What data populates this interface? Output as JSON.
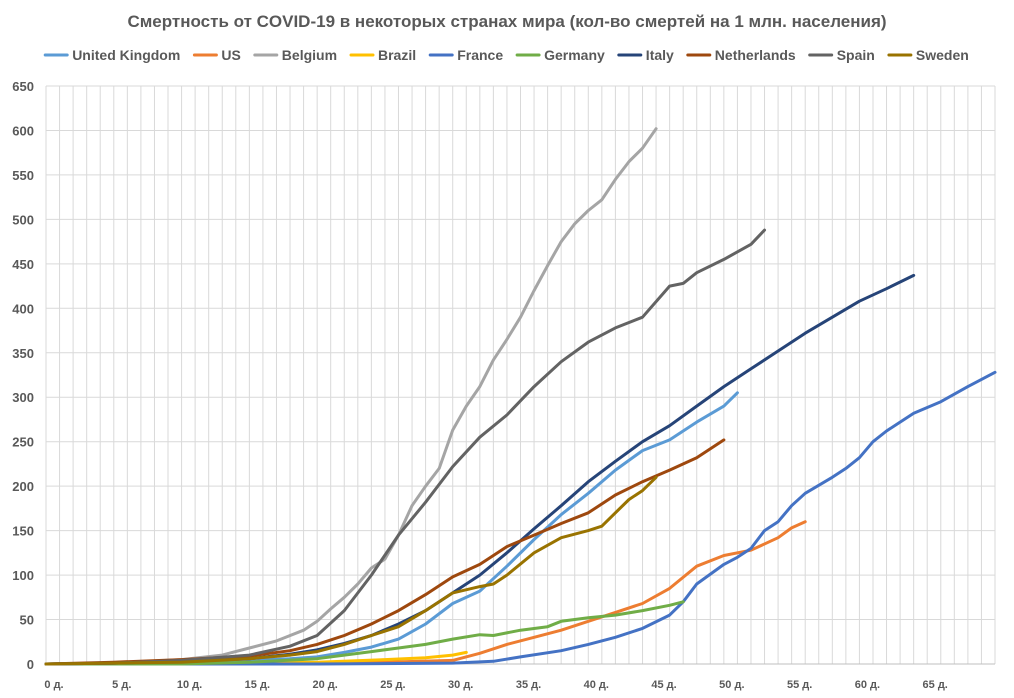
{
  "chart_data": {
    "type": "line",
    "title": "Смертность от COVID-19 в некоторых странах мира (кол-во смертей на 1 млн. населения)",
    "xlabel": "",
    "ylabel": "",
    "xlim": [
      0,
      70
    ],
    "ylim": [
      0,
      650
    ],
    "y_ticks": [
      0,
      50,
      100,
      150,
      200,
      250,
      300,
      350,
      400,
      450,
      500,
      550,
      600,
      650
    ],
    "x_ticks": [
      {
        "value": 0,
        "label": "0 д."
      },
      {
        "value": 5,
        "label": "5 д."
      },
      {
        "value": 10,
        "label": "10 д."
      },
      {
        "value": 15,
        "label": "15 д."
      },
      {
        "value": 20,
        "label": "20 д."
      },
      {
        "value": 25,
        "label": "25 д."
      },
      {
        "value": 30,
        "label": "30 д."
      },
      {
        "value": 35,
        "label": "35 д."
      },
      {
        "value": 40,
        "label": "40 д."
      },
      {
        "value": 45,
        "label": "45 д."
      },
      {
        "value": 50,
        "label": "50 д."
      },
      {
        "value": 55,
        "label": "55 д."
      },
      {
        "value": 60,
        "label": "60 д."
      },
      {
        "value": 65,
        "label": "65 д."
      }
    ],
    "grid": true,
    "legend": "top",
    "series": [
      {
        "name": "United Kingdom",
        "color": "#5b9bd5",
        "points": [
          [
            0,
            0
          ],
          [
            5,
            1
          ],
          [
            10,
            2
          ],
          [
            15,
            4
          ],
          [
            18,
            6
          ],
          [
            20,
            8
          ],
          [
            22,
            13
          ],
          [
            24,
            19
          ],
          [
            26,
            28
          ],
          [
            28,
            45
          ],
          [
            30,
            68
          ],
          [
            32,
            82
          ],
          [
            34,
            110
          ],
          [
            36,
            140
          ],
          [
            38,
            168
          ],
          [
            40,
            192
          ],
          [
            42,
            218
          ],
          [
            44,
            240
          ],
          [
            46,
            252
          ],
          [
            48,
            272
          ],
          [
            50,
            290
          ],
          [
            51,
            305
          ]
        ]
      },
      {
        "name": "US",
        "color": "#ed7d31",
        "points": [
          [
            0,
            0
          ],
          [
            10,
            0
          ],
          [
            20,
            1
          ],
          [
            25,
            2
          ],
          [
            30,
            4
          ],
          [
            32,
            12
          ],
          [
            34,
            22
          ],
          [
            36,
            30
          ],
          [
            38,
            38
          ],
          [
            40,
            48
          ],
          [
            42,
            58
          ],
          [
            44,
            68
          ],
          [
            46,
            85
          ],
          [
            48,
            110
          ],
          [
            50,
            122
          ],
          [
            52,
            128
          ],
          [
            54,
            142
          ],
          [
            55,
            153
          ],
          [
            56,
            160
          ]
        ]
      },
      {
        "name": "Belgium",
        "color": "#a5a5a5",
        "points": [
          [
            0,
            0
          ],
          [
            5,
            1
          ],
          [
            10,
            5
          ],
          [
            13,
            10
          ],
          [
            15,
            18
          ],
          [
            17,
            26
          ],
          [
            19,
            38
          ],
          [
            20,
            48
          ],
          [
            21,
            62
          ],
          [
            22,
            75
          ],
          [
            23,
            90
          ],
          [
            24,
            108
          ],
          [
            25,
            118
          ],
          [
            26,
            145
          ],
          [
            27,
            178
          ],
          [
            28,
            200
          ],
          [
            29,
            220
          ],
          [
            30,
            263
          ],
          [
            31,
            290
          ],
          [
            32,
            312
          ],
          [
            33,
            342
          ],
          [
            34,
            365
          ],
          [
            35,
            390
          ],
          [
            36,
            420
          ],
          [
            37,
            448
          ],
          [
            38,
            475
          ],
          [
            39,
            495
          ],
          [
            40,
            510
          ],
          [
            41,
            522
          ],
          [
            42,
            545
          ],
          [
            43,
            565
          ],
          [
            44,
            580
          ],
          [
            45,
            602
          ]
        ]
      },
      {
        "name": "Brazil",
        "color": "#ffc000",
        "points": [
          [
            0,
            0
          ],
          [
            10,
            0
          ],
          [
            15,
            1
          ],
          [
            20,
            2
          ],
          [
            25,
            5
          ],
          [
            28,
            7
          ],
          [
            30,
            10
          ],
          [
            31,
            13
          ]
        ]
      },
      {
        "name": "France",
        "color": "#4472c4",
        "points": [
          [
            0,
            0
          ],
          [
            10,
            0
          ],
          [
            20,
            0
          ],
          [
            30,
            1
          ],
          [
            33,
            3
          ],
          [
            35,
            8
          ],
          [
            38,
            15
          ],
          [
            40,
            22
          ],
          [
            42,
            30
          ],
          [
            44,
            40
          ],
          [
            46,
            55
          ],
          [
            47,
            70
          ],
          [
            48,
            90
          ],
          [
            50,
            112
          ],
          [
            51,
            120
          ],
          [
            52,
            130
          ],
          [
            53,
            150
          ],
          [
            54,
            160
          ],
          [
            55,
            178
          ],
          [
            56,
            192
          ],
          [
            58,
            210
          ],
          [
            59,
            220
          ],
          [
            60,
            232
          ],
          [
            61,
            250
          ],
          [
            62,
            262
          ],
          [
            63,
            272
          ],
          [
            64,
            282
          ],
          [
            66,
            295
          ],
          [
            68,
            312
          ],
          [
            70,
            328
          ]
        ]
      },
      {
        "name": "Germany",
        "color": "#70ad47",
        "points": [
          [
            0,
            0
          ],
          [
            10,
            0
          ],
          [
            15,
            2
          ],
          [
            20,
            6
          ],
          [
            22,
            10
          ],
          [
            24,
            14
          ],
          [
            26,
            18
          ],
          [
            28,
            22
          ],
          [
            30,
            28
          ],
          [
            32,
            33
          ],
          [
            33,
            32
          ],
          [
            35,
            38
          ],
          [
            37,
            42
          ],
          [
            38,
            48
          ],
          [
            40,
            52
          ],
          [
            42,
            55
          ],
          [
            44,
            60
          ],
          [
            46,
            66
          ],
          [
            47,
            70
          ]
        ]
      },
      {
        "name": "Italy",
        "color": "#264478",
        "points": [
          [
            0,
            0
          ],
          [
            5,
            1
          ],
          [
            10,
            3
          ],
          [
            15,
            6
          ],
          [
            18,
            11
          ],
          [
            20,
            16
          ],
          [
            22,
            23
          ],
          [
            24,
            32
          ],
          [
            26,
            45
          ],
          [
            28,
            60
          ],
          [
            30,
            80
          ],
          [
            32,
            100
          ],
          [
            34,
            125
          ],
          [
            36,
            152
          ],
          [
            38,
            178
          ],
          [
            40,
            205
          ],
          [
            42,
            228
          ],
          [
            44,
            250
          ],
          [
            46,
            268
          ],
          [
            48,
            290
          ],
          [
            50,
            312
          ],
          [
            52,
            332
          ],
          [
            54,
            352
          ],
          [
            56,
            372
          ],
          [
            58,
            390
          ],
          [
            60,
            408
          ],
          [
            62,
            422
          ],
          [
            64,
            437
          ]
        ]
      },
      {
        "name": "Netherlands",
        "color": "#9e480e",
        "points": [
          [
            0,
            0
          ],
          [
            5,
            2
          ],
          [
            10,
            5
          ],
          [
            15,
            9
          ],
          [
            18,
            15
          ],
          [
            20,
            22
          ],
          [
            22,
            32
          ],
          [
            24,
            45
          ],
          [
            26,
            60
          ],
          [
            28,
            78
          ],
          [
            30,
            98
          ],
          [
            32,
            112
          ],
          [
            33,
            122
          ],
          [
            34,
            132
          ],
          [
            36,
            145
          ],
          [
            38,
            158
          ],
          [
            40,
            170
          ],
          [
            42,
            190
          ],
          [
            44,
            205
          ],
          [
            46,
            218
          ],
          [
            48,
            232
          ],
          [
            50,
            252
          ]
        ]
      },
      {
        "name": "Spain",
        "color": "#636363",
        "points": [
          [
            0,
            0
          ],
          [
            5,
            1
          ],
          [
            10,
            4
          ],
          [
            15,
            10
          ],
          [
            18,
            20
          ],
          [
            20,
            32
          ],
          [
            22,
            60
          ],
          [
            24,
            100
          ],
          [
            26,
            145
          ],
          [
            28,
            182
          ],
          [
            30,
            222
          ],
          [
            32,
            255
          ],
          [
            34,
            280
          ],
          [
            36,
            312
          ],
          [
            38,
            340
          ],
          [
            40,
            362
          ],
          [
            42,
            378
          ],
          [
            44,
            390
          ],
          [
            46,
            425
          ],
          [
            47,
            428
          ],
          [
            48,
            440
          ],
          [
            50,
            455
          ],
          [
            52,
            472
          ],
          [
            53,
            488
          ]
        ]
      },
      {
        "name": "Sweden",
        "color": "#997300",
        "points": [
          [
            0,
            0
          ],
          [
            5,
            1
          ],
          [
            10,
            2
          ],
          [
            15,
            6
          ],
          [
            18,
            10
          ],
          [
            20,
            14
          ],
          [
            22,
            22
          ],
          [
            24,
            32
          ],
          [
            26,
            42
          ],
          [
            28,
            60
          ],
          [
            30,
            80
          ],
          [
            32,
            87
          ],
          [
            33,
            90
          ],
          [
            34,
            100
          ],
          [
            36,
            125
          ],
          [
            38,
            142
          ],
          [
            40,
            150
          ],
          [
            41,
            155
          ],
          [
            42,
            170
          ],
          [
            43,
            185
          ],
          [
            44,
            195
          ],
          [
            45,
            210
          ]
        ]
      }
    ]
  }
}
